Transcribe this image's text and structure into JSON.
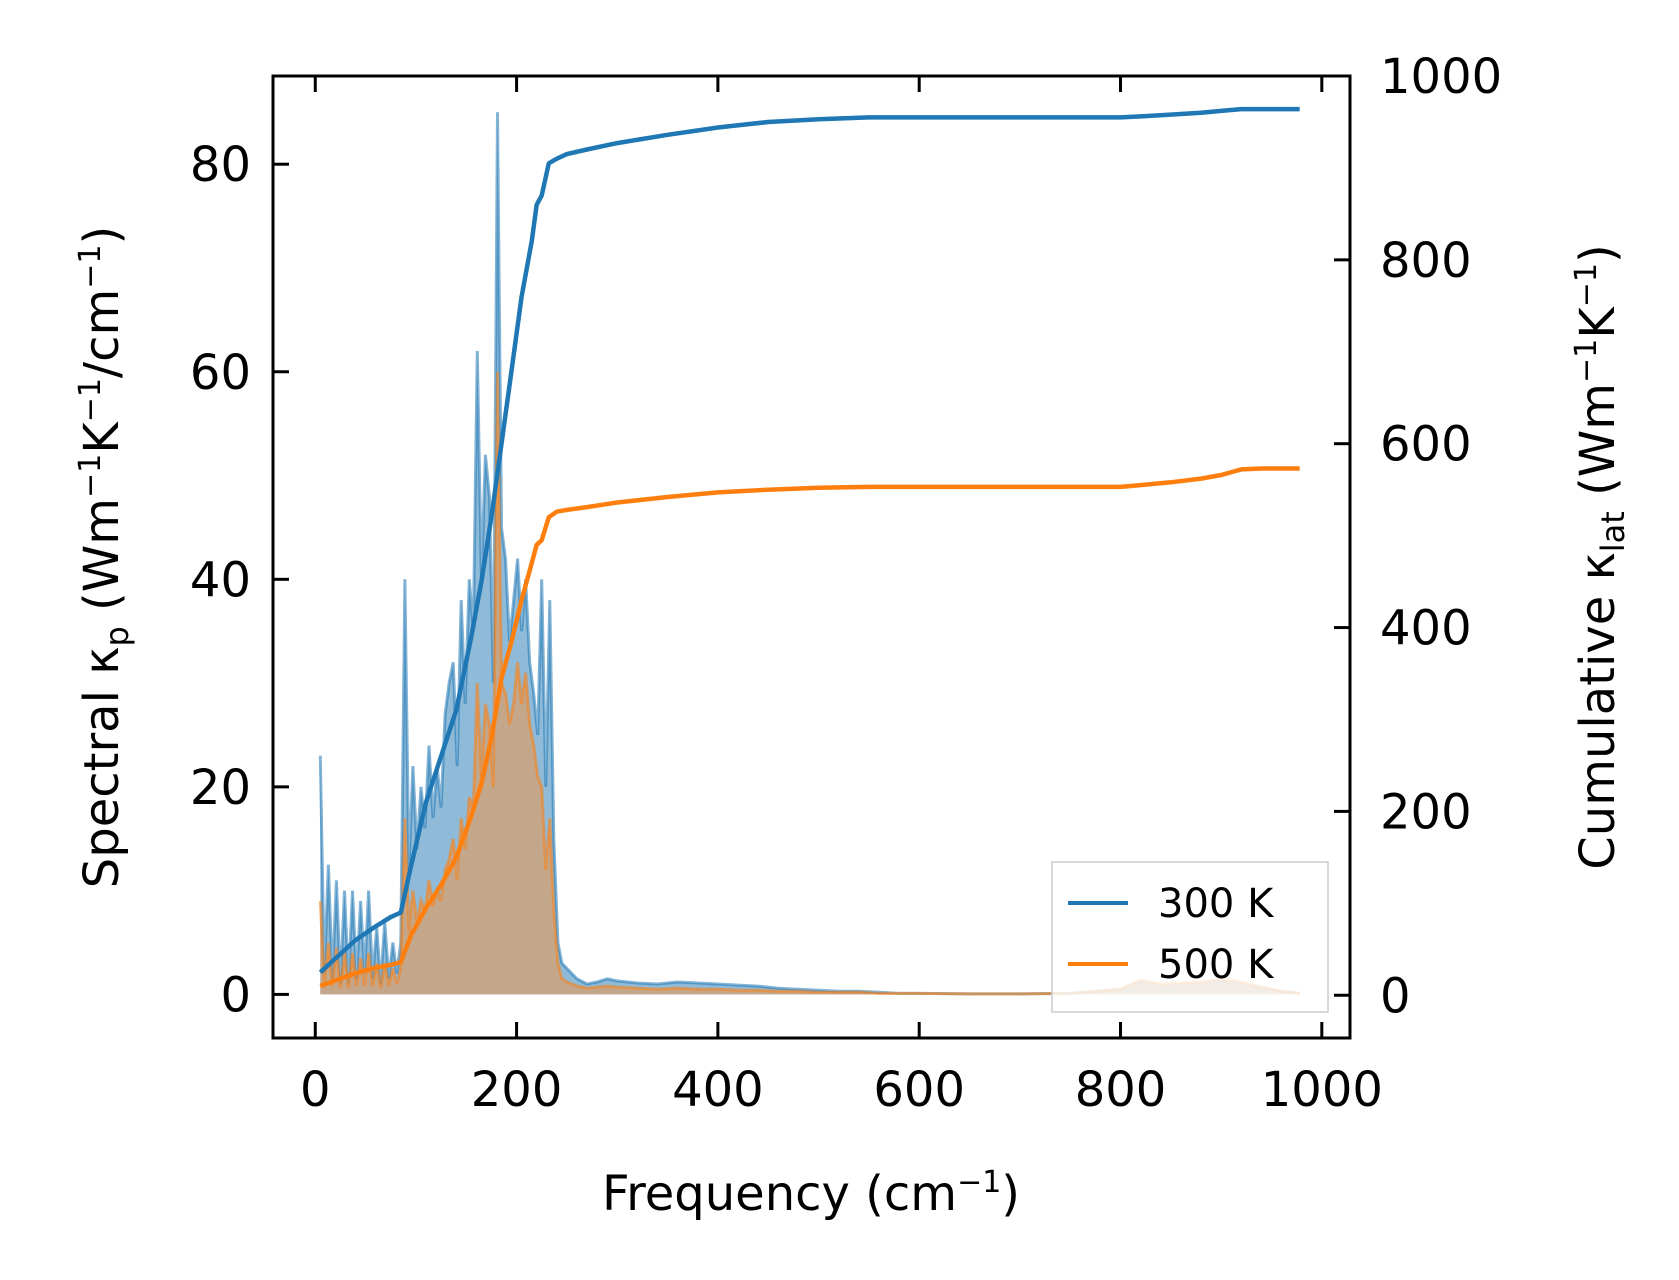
{
  "chart_data": {
    "type": "line",
    "xlabel": {
      "base": "Frequency (cm",
      "sup": "−1",
      "tail": ")"
    },
    "ylabel_left": {
      "base": "Spectral κ",
      "sub": "p",
      "mid": " (Wm",
      "sup1": "−1",
      "mid2": "K",
      "sup2": "−1",
      "mid3": "/cm",
      "sup3": "−1",
      "tail": ")"
    },
    "ylabel_right": {
      "base": "Cumulative κ",
      "sub": "lat",
      "mid": " (Wm",
      "sup1": "−1",
      "mid2": "K",
      "sup2": "−1",
      "tail": ")"
    },
    "xlim": [
      -42,
      1028
    ],
    "ylim_left": [
      -4.2,
      88.5
    ],
    "ylim_right": [
      -46.5,
      1000
    ],
    "xticks": [
      "0",
      "200",
      "400",
      "600",
      "800",
      "1000"
    ],
    "yticks_left": [
      "0",
      "20",
      "40",
      "60",
      "80"
    ],
    "yticks_right": [
      "0",
      "200",
      "400",
      "600",
      "800",
      "1000"
    ],
    "legend": {
      "placement": "lower-right",
      "entries": [
        "300 K",
        "500 K"
      ]
    },
    "colors": {
      "s300": "#1f77b4",
      "s500": "#ff7f0e",
      "fill300": "#1f77b4",
      "fill500": "#d6a070"
    },
    "spectral": [
      {
        "name": "300 K",
        "x": [
          5,
          9,
          13,
          17,
          21,
          25,
          29,
          33,
          37,
          41,
          45,
          49,
          53,
          57,
          61,
          65,
          69,
          73,
          77,
          81,
          85,
          89,
          93,
          97,
          101,
          105,
          109,
          113,
          117,
          121,
          125,
          129,
          133,
          137,
          141,
          145,
          149,
          153,
          157,
          161,
          165,
          169,
          173,
          177,
          181,
          185,
          189,
          193,
          197,
          201,
          205,
          209,
          213,
          217,
          221,
          225,
          229,
          233,
          237,
          241,
          245,
          250,
          255,
          260,
          270,
          280,
          290,
          300,
          320,
          340,
          360,
          380,
          400,
          420,
          440,
          460,
          480,
          500,
          520,
          540,
          560,
          580,
          600,
          650,
          700,
          750,
          800,
          820,
          840,
          860,
          880,
          900,
          920,
          940,
          960,
          978
        ],
        "y": [
          23,
          2,
          12.5,
          1.5,
          11,
          1,
          10,
          1,
          10,
          1.5,
          9,
          2,
          10,
          1.5,
          6.5,
          1,
          7,
          1.5,
          5,
          2,
          5,
          40,
          12,
          22,
          14,
          20,
          16,
          24,
          17,
          22,
          18,
          27,
          30,
          32,
          22,
          38,
          28,
          40,
          35,
          62,
          40,
          52,
          48,
          30,
          85,
          45,
          42,
          34,
          38,
          42,
          35,
          40,
          32,
          29,
          25,
          40,
          20,
          38,
          15,
          5,
          3,
          2.5,
          2,
          1.5,
          1,
          1.2,
          1.5,
          1.3,
          1.1,
          1.0,
          1.2,
          1.1,
          1.0,
          0.9,
          0.8,
          0.6,
          0.5,
          0.4,
          0.3,
          0.3,
          0.2,
          0.1,
          0.1,
          0.05,
          0.05,
          0.1,
          0.5,
          1.2,
          0.8,
          0.9,
          1.0,
          1.3,
          1.0,
          0.6,
          0.3,
          0.1
        ]
      },
      {
        "name": "500 K",
        "x": [
          5,
          9,
          13,
          17,
          21,
          25,
          29,
          33,
          37,
          41,
          45,
          49,
          53,
          57,
          61,
          65,
          69,
          73,
          77,
          81,
          85,
          89,
          93,
          97,
          101,
          105,
          109,
          113,
          117,
          121,
          125,
          129,
          133,
          137,
          141,
          145,
          149,
          153,
          157,
          161,
          165,
          169,
          173,
          177,
          181,
          185,
          189,
          193,
          197,
          201,
          205,
          209,
          213,
          217,
          221,
          225,
          229,
          233,
          237,
          241,
          245,
          250,
          255,
          260,
          270,
          280,
          290,
          300,
          320,
          340,
          360,
          380,
          400,
          420,
          440,
          460,
          480,
          500,
          520,
          540,
          560,
          580,
          600,
          650,
          700,
          750,
          800,
          820,
          840,
          860,
          880,
          900,
          920,
          940,
          960,
          978
        ],
        "y": [
          9,
          1,
          5,
          0.8,
          4.5,
          0.6,
          4,
          0.6,
          4,
          0.8,
          3.5,
          0.8,
          4,
          0.8,
          3,
          0.6,
          3,
          0.8,
          2.5,
          1,
          2.5,
          17,
          6,
          10,
          7,
          9,
          8,
          11,
          8.5,
          10,
          9,
          12,
          13,
          15,
          11,
          17,
          14,
          19,
          18,
          30,
          21,
          28,
          26,
          20,
          60,
          30,
          29,
          26,
          28,
          32,
          28,
          31,
          26,
          24,
          21,
          20,
          12,
          17,
          8,
          3,
          1.5,
          1.2,
          1,
          0.8,
          0.6,
          0.7,
          0.8,
          0.7,
          0.6,
          0.5,
          0.6,
          0.5,
          0.5,
          0.4,
          0.4,
          0.3,
          0.3,
          0.2,
          0.2,
          0.2,
          0.1,
          0.1,
          0.1,
          0.05,
          0.05,
          0.1,
          0.5,
          1.4,
          1.0,
          1.1,
          1.2,
          1.5,
          1.2,
          0.7,
          0.3,
          0.1
        ]
      }
    ],
    "cumulative": [
      {
        "name": "300 K",
        "x": [
          5,
          20,
          40,
          60,
          75,
          85,
          95,
          110,
          125,
          140,
          155,
          165,
          175,
          185,
          195,
          205,
          215,
          220,
          225,
          232,
          240,
          250,
          270,
          300,
          350,
          400,
          450,
          500,
          550,
          600,
          650,
          700,
          750,
          800,
          820,
          850,
          880,
          900,
          920,
          940,
          960,
          978
        ],
        "y": [
          25,
          40,
          60,
          75,
          85,
          90,
          140,
          210,
          260,
          310,
          390,
          450,
          520,
          600,
          680,
          760,
          820,
          860,
          870,
          905,
          910,
          915,
          920,
          927,
          936,
          944,
          950,
          953,
          955,
          955,
          955,
          955,
          955,
          955,
          956,
          958,
          960,
          962,
          964,
          964,
          964,
          964
        ]
      },
      {
        "name": "500 K",
        "x": [
          5,
          20,
          40,
          60,
          75,
          85,
          95,
          110,
          125,
          140,
          155,
          165,
          175,
          185,
          195,
          205,
          215,
          220,
          225,
          232,
          240,
          250,
          270,
          300,
          350,
          400,
          450,
          500,
          550,
          600,
          650,
          700,
          750,
          800,
          820,
          850,
          880,
          900,
          920,
          940,
          960,
          978
        ],
        "y": [
          10,
          16,
          24,
          30,
          33,
          36,
          65,
          95,
          120,
          150,
          195,
          230,
          280,
          345,
          385,
          430,
          470,
          490,
          495,
          520,
          526,
          528,
          531,
          536,
          542,
          547,
          550,
          552,
          553,
          553,
          553,
          553,
          553,
          553,
          555,
          558,
          562,
          566,
          572,
          573,
          573,
          573
        ]
      }
    ]
  }
}
